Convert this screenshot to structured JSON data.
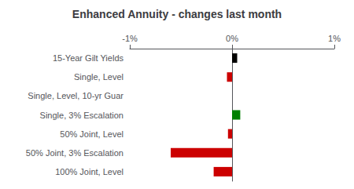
{
  "chart_data": {
    "type": "bar",
    "orientation": "horizontal",
    "title": "Enhanced Annuity - changes last month",
    "categories": [
      "15-Year Gilt Yields",
      "Single, Level",
      "Single, Level, 10-yr Guar",
      "Single, 3% Escalation",
      "50% Joint, Level",
      "50% Joint, 3% Escalation",
      "100% Joint, Level"
    ],
    "values": [
      0.05,
      -0.05,
      0.0,
      0.08,
      -0.04,
      -0.6,
      -0.18
    ],
    "colors": [
      "#000000",
      "#cc0000",
      "#cc0000",
      "#008000",
      "#cc0000",
      "#cc0000",
      "#cc0000"
    ],
    "xlim": [
      -1.0,
      1.0
    ],
    "xticks": [
      {
        "value": -1.0,
        "label": "-1%"
      },
      {
        "value": 0.0,
        "label": "0%"
      },
      {
        "value": 1.0,
        "label": "1%"
      }
    ],
    "grid": false
  }
}
